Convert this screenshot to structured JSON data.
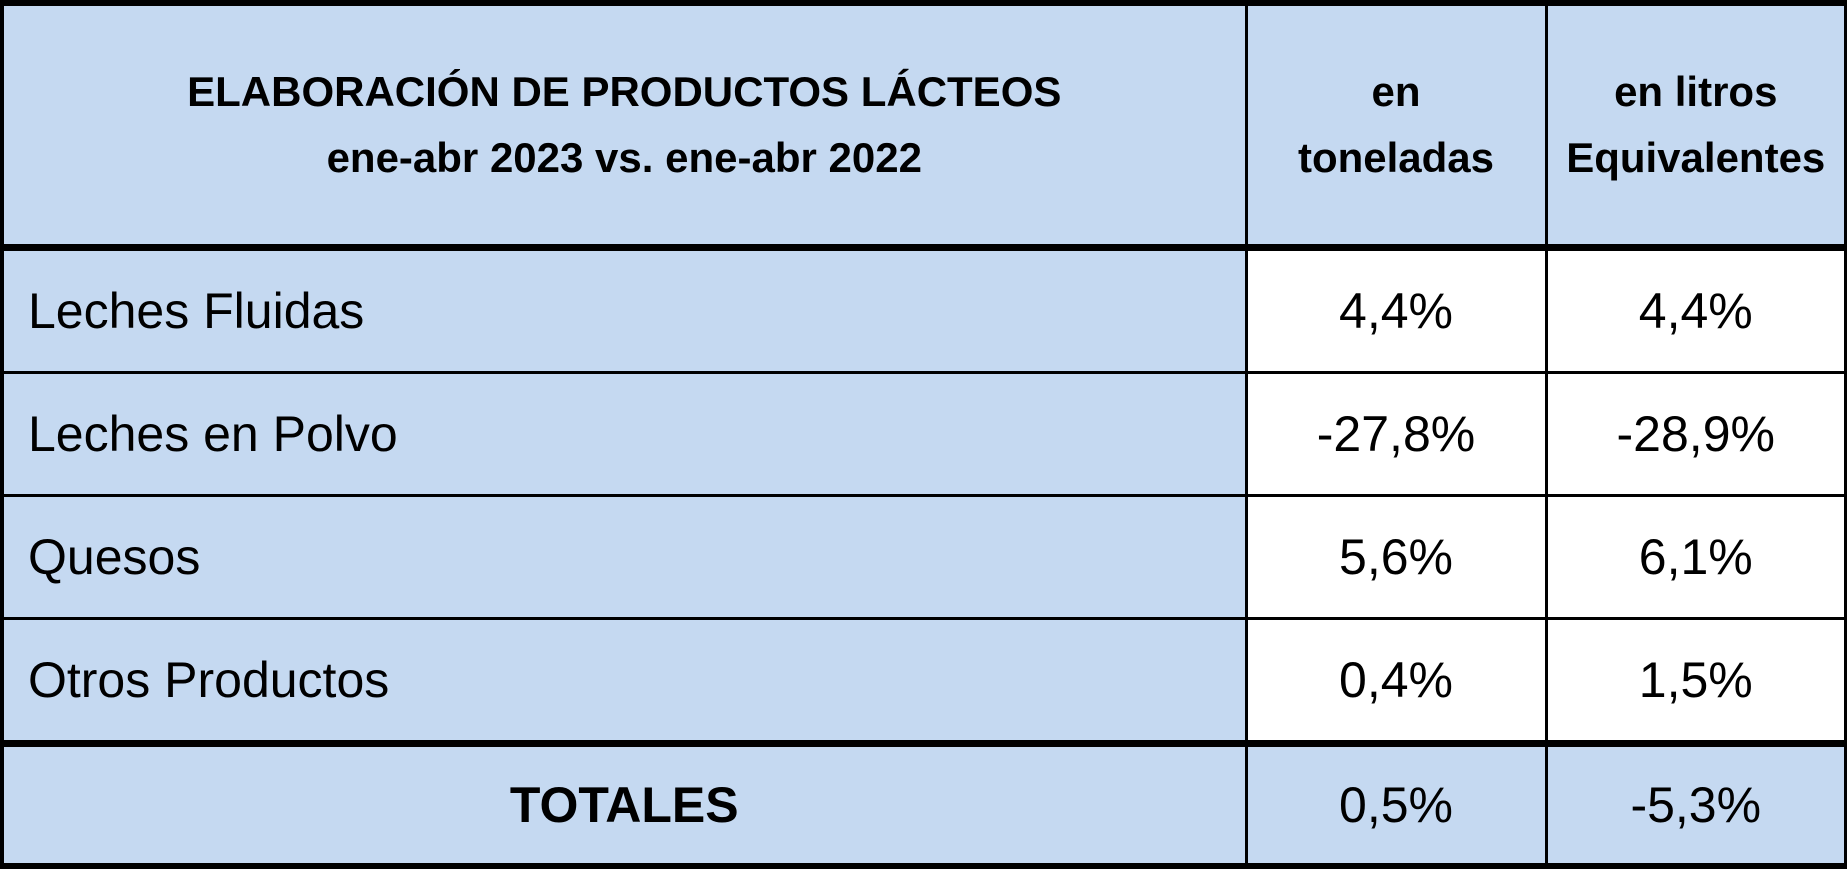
{
  "header": {
    "title_line1": "ELABORACIÓN DE PRODUCTOS LÁCTEOS",
    "title_line2": "ene-abr 2023 vs. ene-abr 2022",
    "col2_line1": "en",
    "col2_line2": "toneladas",
    "col3_line1": "en litros",
    "col3_line2": "Equivalentes"
  },
  "rows": [
    {
      "label": "Leches Fluidas",
      "toneladas": "4,4%",
      "litros": "4,4%"
    },
    {
      "label": "Leches en Polvo",
      "toneladas": "-27,8%",
      "litros": "-28,9%"
    },
    {
      "label": "Quesos",
      "toneladas": "5,6%",
      "litros": "6,1%"
    },
    {
      "label": "Otros Productos",
      "toneladas": "0,4%",
      "litros": "1,5%"
    }
  ],
  "totals": {
    "label": "TOTALES",
    "toneladas": "0,5%",
    "litros": "-5,3%"
  },
  "colors": {
    "header_fill": "#c5d9f1",
    "value_fill": "#ffffff",
    "border": "#000000"
  }
}
